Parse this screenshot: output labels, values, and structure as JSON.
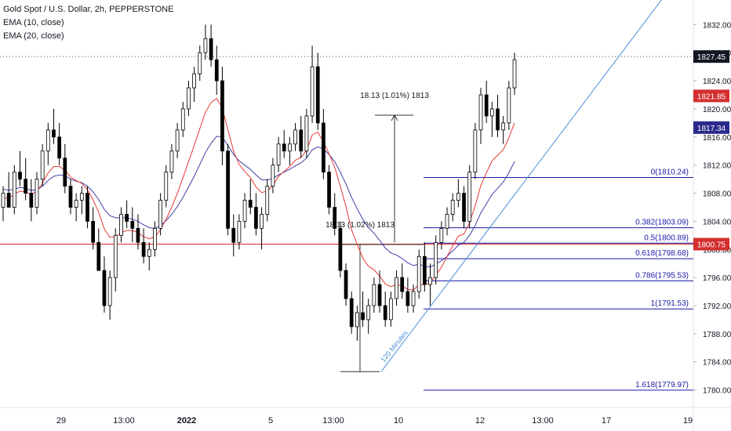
{
  "legend": {
    "symbol": "Gold Spot / U.S. Dollar, 2h, PEPPERSTONE",
    "ema_fast": "EMA (10, close)",
    "ema_slow": "EMA (20, close)"
  },
  "colors": {
    "up_candle": "#ffffff",
    "down_candle": "#000000",
    "candle_outline": "#000000",
    "ema_fast": "#e53935",
    "ema_slow": "#3f3fa8",
    "fib_lines": "#1a1aa8",
    "trendline": "#4a90d9",
    "support_line": "#e53935",
    "price_badge_dark": "#131722",
    "price_badge_red": "#d32f2f",
    "price_badge_navy": "#2a2a8c",
    "measure_lines": "#333333"
  },
  "chart_data": {
    "type": "candlestick",
    "y_axis": {
      "range": [
        1777.5,
        1835.5
      ],
      "ticks": [
        "1780.00",
        "1784.00",
        "1788.00",
        "1792.00",
        "1796.00",
        "1800.00",
        "1804.00",
        "1808.00",
        "1812.00",
        "1816.00",
        "1820.00",
        "1824.00",
        "1828.00",
        "1832.00"
      ],
      "position": "right"
    },
    "x_axis": {
      "ticks": [
        "29",
        "13:00",
        "2022",
        "5",
        "13:00",
        "10",
        "12",
        "13:00",
        "17",
        "19"
      ],
      "bold_ticks": [
        "2022"
      ]
    },
    "price_labels": [
      {
        "label": "1827.45",
        "value": 1827.45,
        "style": "dark"
      },
      {
        "label": "1821.85",
        "value": 1821.85,
        "style": "red"
      },
      {
        "label": "1817.34",
        "value": 1817.34,
        "style": "navy"
      },
      {
        "label": "1800.75",
        "value": 1800.75,
        "style": "red"
      }
    ],
    "current_price_line": 1827.45,
    "horizontal_support": 1800.75,
    "fibonacci": [
      {
        "label": "0(1810.24)",
        "value": 1810.24
      },
      {
        "label": "0.382(1803.09)",
        "value": 1803.09
      },
      {
        "label": "0.5(1800.89)",
        "value": 1800.89
      },
      {
        "label": "0.618(1798.68)",
        "value": 1798.68
      },
      {
        "label": "0.786(1795.53)",
        "value": 1795.53
      },
      {
        "label": "1(1791.53)",
        "value": 1791.53
      },
      {
        "label": "1.618(1779.97)",
        "value": 1779.97
      }
    ],
    "measurements": [
      {
        "label": "18.13 (1.02%) 1813",
        "from": 1782.6,
        "to": 1800.7
      },
      {
        "label": "18.13 (1.01%) 1813",
        "from": 1801.0,
        "to": 1819.1
      }
    ],
    "trendline_label": "120 Minutes",
    "candles": [
      [
        1806,
        1809,
        1804,
        1808
      ],
      [
        1808,
        1811,
        1806,
        1806
      ],
      [
        1806,
        1812,
        1805,
        1811
      ],
      [
        1811,
        1814,
        1809,
        1810
      ],
      [
        1810,
        1813,
        1807,
        1808
      ],
      [
        1808,
        1810,
        1804,
        1806
      ],
      [
        1806,
        1811,
        1805,
        1810
      ],
      [
        1810,
        1815,
        1809,
        1814
      ],
      [
        1814,
        1818,
        1812,
        1817
      ],
      [
        1817,
        1820,
        1815,
        1816
      ],
      [
        1816,
        1818,
        1812,
        1813
      ],
      [
        1813,
        1815,
        1808,
        1809
      ],
      [
        1809,
        1810,
        1805,
        1806
      ],
      [
        1806,
        1808,
        1804,
        1807
      ],
      [
        1807,
        1809,
        1805,
        1808
      ],
      [
        1808,
        1809,
        1803,
        1804
      ],
      [
        1804,
        1806,
        1800,
        1801
      ],
      [
        1801,
        1803,
        1797,
        1797
      ],
      [
        1797,
        1799,
        1791,
        1792
      ],
      [
        1792,
        1797,
        1790,
        1796
      ],
      [
        1796,
        1803,
        1794,
        1802
      ],
      [
        1802,
        1806,
        1801,
        1805
      ],
      [
        1805,
        1807,
        1803,
        1804
      ],
      [
        1804,
        1806,
        1801,
        1803
      ],
      [
        1803,
        1805,
        1800,
        1801
      ],
      [
        1801,
        1803,
        1798,
        1799
      ],
      [
        1799,
        1801,
        1797,
        1800
      ],
      [
        1800,
        1804,
        1799,
        1803
      ],
      [
        1803,
        1808,
        1802,
        1807
      ],
      [
        1807,
        1812,
        1806,
        1811
      ],
      [
        1811,
        1815,
        1810,
        1814
      ],
      [
        1814,
        1818,
        1813,
        1817
      ],
      [
        1817,
        1821,
        1816,
        1820
      ],
      [
        1820,
        1824,
        1819,
        1823
      ],
      [
        1823,
        1826,
        1821,
        1825
      ],
      [
        1825,
        1829,
        1824,
        1828
      ],
      [
        1828,
        1832,
        1827,
        1830
      ],
      [
        1830,
        1832,
        1826,
        1827
      ],
      [
        1827,
        1829,
        1822,
        1824
      ],
      [
        1824,
        1826,
        1812,
        1814
      ],
      [
        1814,
        1815,
        1802,
        1803
      ],
      [
        1803,
        1805,
        1799,
        1801
      ],
      [
        1801,
        1805,
        1800,
        1804
      ],
      [
        1804,
        1808,
        1803,
        1807
      ],
      [
        1807,
        1810,
        1805,
        1806
      ],
      [
        1806,
        1808,
        1802,
        1803
      ],
      [
        1803,
        1806,
        1800,
        1805
      ],
      [
        1805,
        1810,
        1804,
        1809
      ],
      [
        1809,
        1813,
        1808,
        1812
      ],
      [
        1812,
        1816,
        1811,
        1815
      ],
      [
        1815,
        1817,
        1813,
        1814
      ],
      [
        1814,
        1816,
        1812,
        1815
      ],
      [
        1815,
        1818,
        1814,
        1817
      ],
      [
        1817,
        1819,
        1813,
        1814
      ],
      [
        1814,
        1820,
        1813,
        1819
      ],
      [
        1819,
        1829,
        1818,
        1826
      ],
      [
        1826,
        1828,
        1817,
        1818
      ],
      [
        1818,
        1820,
        1810,
        1811
      ],
      [
        1811,
        1812,
        1805,
        1806
      ],
      [
        1806,
        1808,
        1802,
        1803
      ],
      [
        1803,
        1804,
        1796,
        1797
      ],
      [
        1797,
        1798,
        1792,
        1793
      ],
      [
        1793,
        1794,
        1788,
        1789
      ],
      [
        1789,
        1792,
        1787,
        1791
      ],
      [
        1791,
        1794,
        1789,
        1790
      ],
      [
        1790,
        1793,
        1788,
        1792
      ],
      [
        1792,
        1796,
        1791,
        1795
      ],
      [
        1795,
        1797,
        1791,
        1792
      ],
      [
        1792,
        1794,
        1789,
        1790
      ],
      [
        1790,
        1794,
        1789,
        1793
      ],
      [
        1793,
        1797,
        1792,
        1796
      ],
      [
        1796,
        1798,
        1793,
        1794
      ],
      [
        1794,
        1796,
        1791,
        1792
      ],
      [
        1792,
        1795,
        1791,
        1794
      ],
      [
        1794,
        1800,
        1793,
        1799
      ],
      [
        1799,
        1801,
        1794,
        1795
      ],
      [
        1795,
        1798,
        1792,
        1796
      ],
      [
        1796,
        1802,
        1795,
        1801
      ],
      [
        1801,
        1804,
        1800,
        1803
      ],
      [
        1803,
        1806,
        1802,
        1805
      ],
      [
        1805,
        1808,
        1804,
        1807
      ],
      [
        1807,
        1810,
        1806,
        1808
      ],
      [
        1808,
        1809,
        1803,
        1804
      ],
      [
        1804,
        1812,
        1803,
        1811
      ],
      [
        1811,
        1818,
        1810,
        1817
      ],
      [
        1817,
        1823,
        1815,
        1822
      ],
      [
        1822,
        1824,
        1818,
        1819
      ],
      [
        1819,
        1821,
        1816,
        1820
      ],
      [
        1820,
        1822,
        1816,
        1817
      ],
      [
        1817,
        1819,
        1815,
        1818
      ],
      [
        1818,
        1824,
        1817,
        1823
      ],
      [
        1823,
        1828,
        1822,
        1827
      ]
    ],
    "ema_fast_values": [
      1807.4,
      1807.2,
      1807.9,
      1808.3,
      1808.2,
      1807.8,
      1808.3,
      1809.4,
      1810.9,
      1811.8,
      1811.8,
      1811.3,
      1810.3,
      1809.8,
      1809.4,
      1808.5,
      1807.1,
      1805.3,
      1802.9,
      1801.7,
      1801.8,
      1802.4,
      1802.7,
      1802.7,
      1802.4,
      1801.8,
      1801.5,
      1801.8,
      1802.8,
      1804.3,
      1806.0,
      1808.0,
      1810.2,
      1812.5,
      1814.8,
      1817.2,
      1819.5,
      1820.9,
      1821.5,
      1820.1,
      1817.0,
      1814.0,
      1812.1,
      1811.1,
      1810.2,
      1808.9,
      1808.1,
      1808.3,
      1809.1,
      1810.4,
      1811.1,
      1811.8,
      1812.7,
      1813.1,
      1814.1,
      1816.3,
      1816.7,
      1815.3,
      1813.6,
      1811.7,
      1809.0,
      1806.1,
      1802.8,
      1800.7,
      1798.8,
      1797.6,
      1797.1,
      1796.2,
      1795.1,
      1794.7,
      1795.0,
      1794.8,
      1794.3,
      1794.2,
      1795.0,
      1795.0,
      1795.2,
      1796.3,
      1797.5,
      1799.0,
      1800.5,
      1801.9,
      1802.2,
      1803.8,
      1806.2,
      1809.1,
      1810.9,
      1812.6,
      1813.4,
      1814.2,
      1815.9,
      1818.0
    ],
    "ema_slow_values": [
      1808.6,
      1808.4,
      1808.6,
      1808.8,
      1808.7,
      1808.4,
      1808.5,
      1809.0,
      1809.8,
      1810.4,
      1810.6,
      1810.5,
      1810.0,
      1809.7,
      1809.5,
      1809.0,
      1808.2,
      1807.1,
      1805.7,
      1804.8,
      1804.5,
      1804.5,
      1804.5,
      1804.3,
      1804.0,
      1803.5,
      1803.1,
      1803.0,
      1803.4,
      1804.1,
      1805.0,
      1806.1,
      1807.4,
      1808.9,
      1810.4,
      1812.1,
      1813.8,
      1815.1,
      1816.1,
      1816.0,
      1814.8,
      1813.5,
      1812.6,
      1812.0,
      1811.4,
      1810.6,
      1809.9,
      1809.9,
      1810.1,
      1810.6,
      1811.0,
      1811.4,
      1811.9,
      1812.3,
      1813.0,
      1814.2,
      1814.6,
      1814.3,
      1813.5,
      1812.5,
      1811.0,
      1809.3,
      1807.4,
      1805.8,
      1804.3,
      1803.1,
      1802.3,
      1801.3,
      1800.2,
      1799.5,
      1799.2,
      1798.7,
      1798.1,
      1797.7,
      1797.9,
      1797.6,
      1797.5,
      1797.9,
      1798.4,
      1799.0,
      1799.8,
      1800.6,
      1801.0,
      1802.0,
      1803.4,
      1805.2,
      1806.5,
      1807.8,
      1808.7,
      1809.6,
      1810.9,
      1812.5
    ]
  }
}
